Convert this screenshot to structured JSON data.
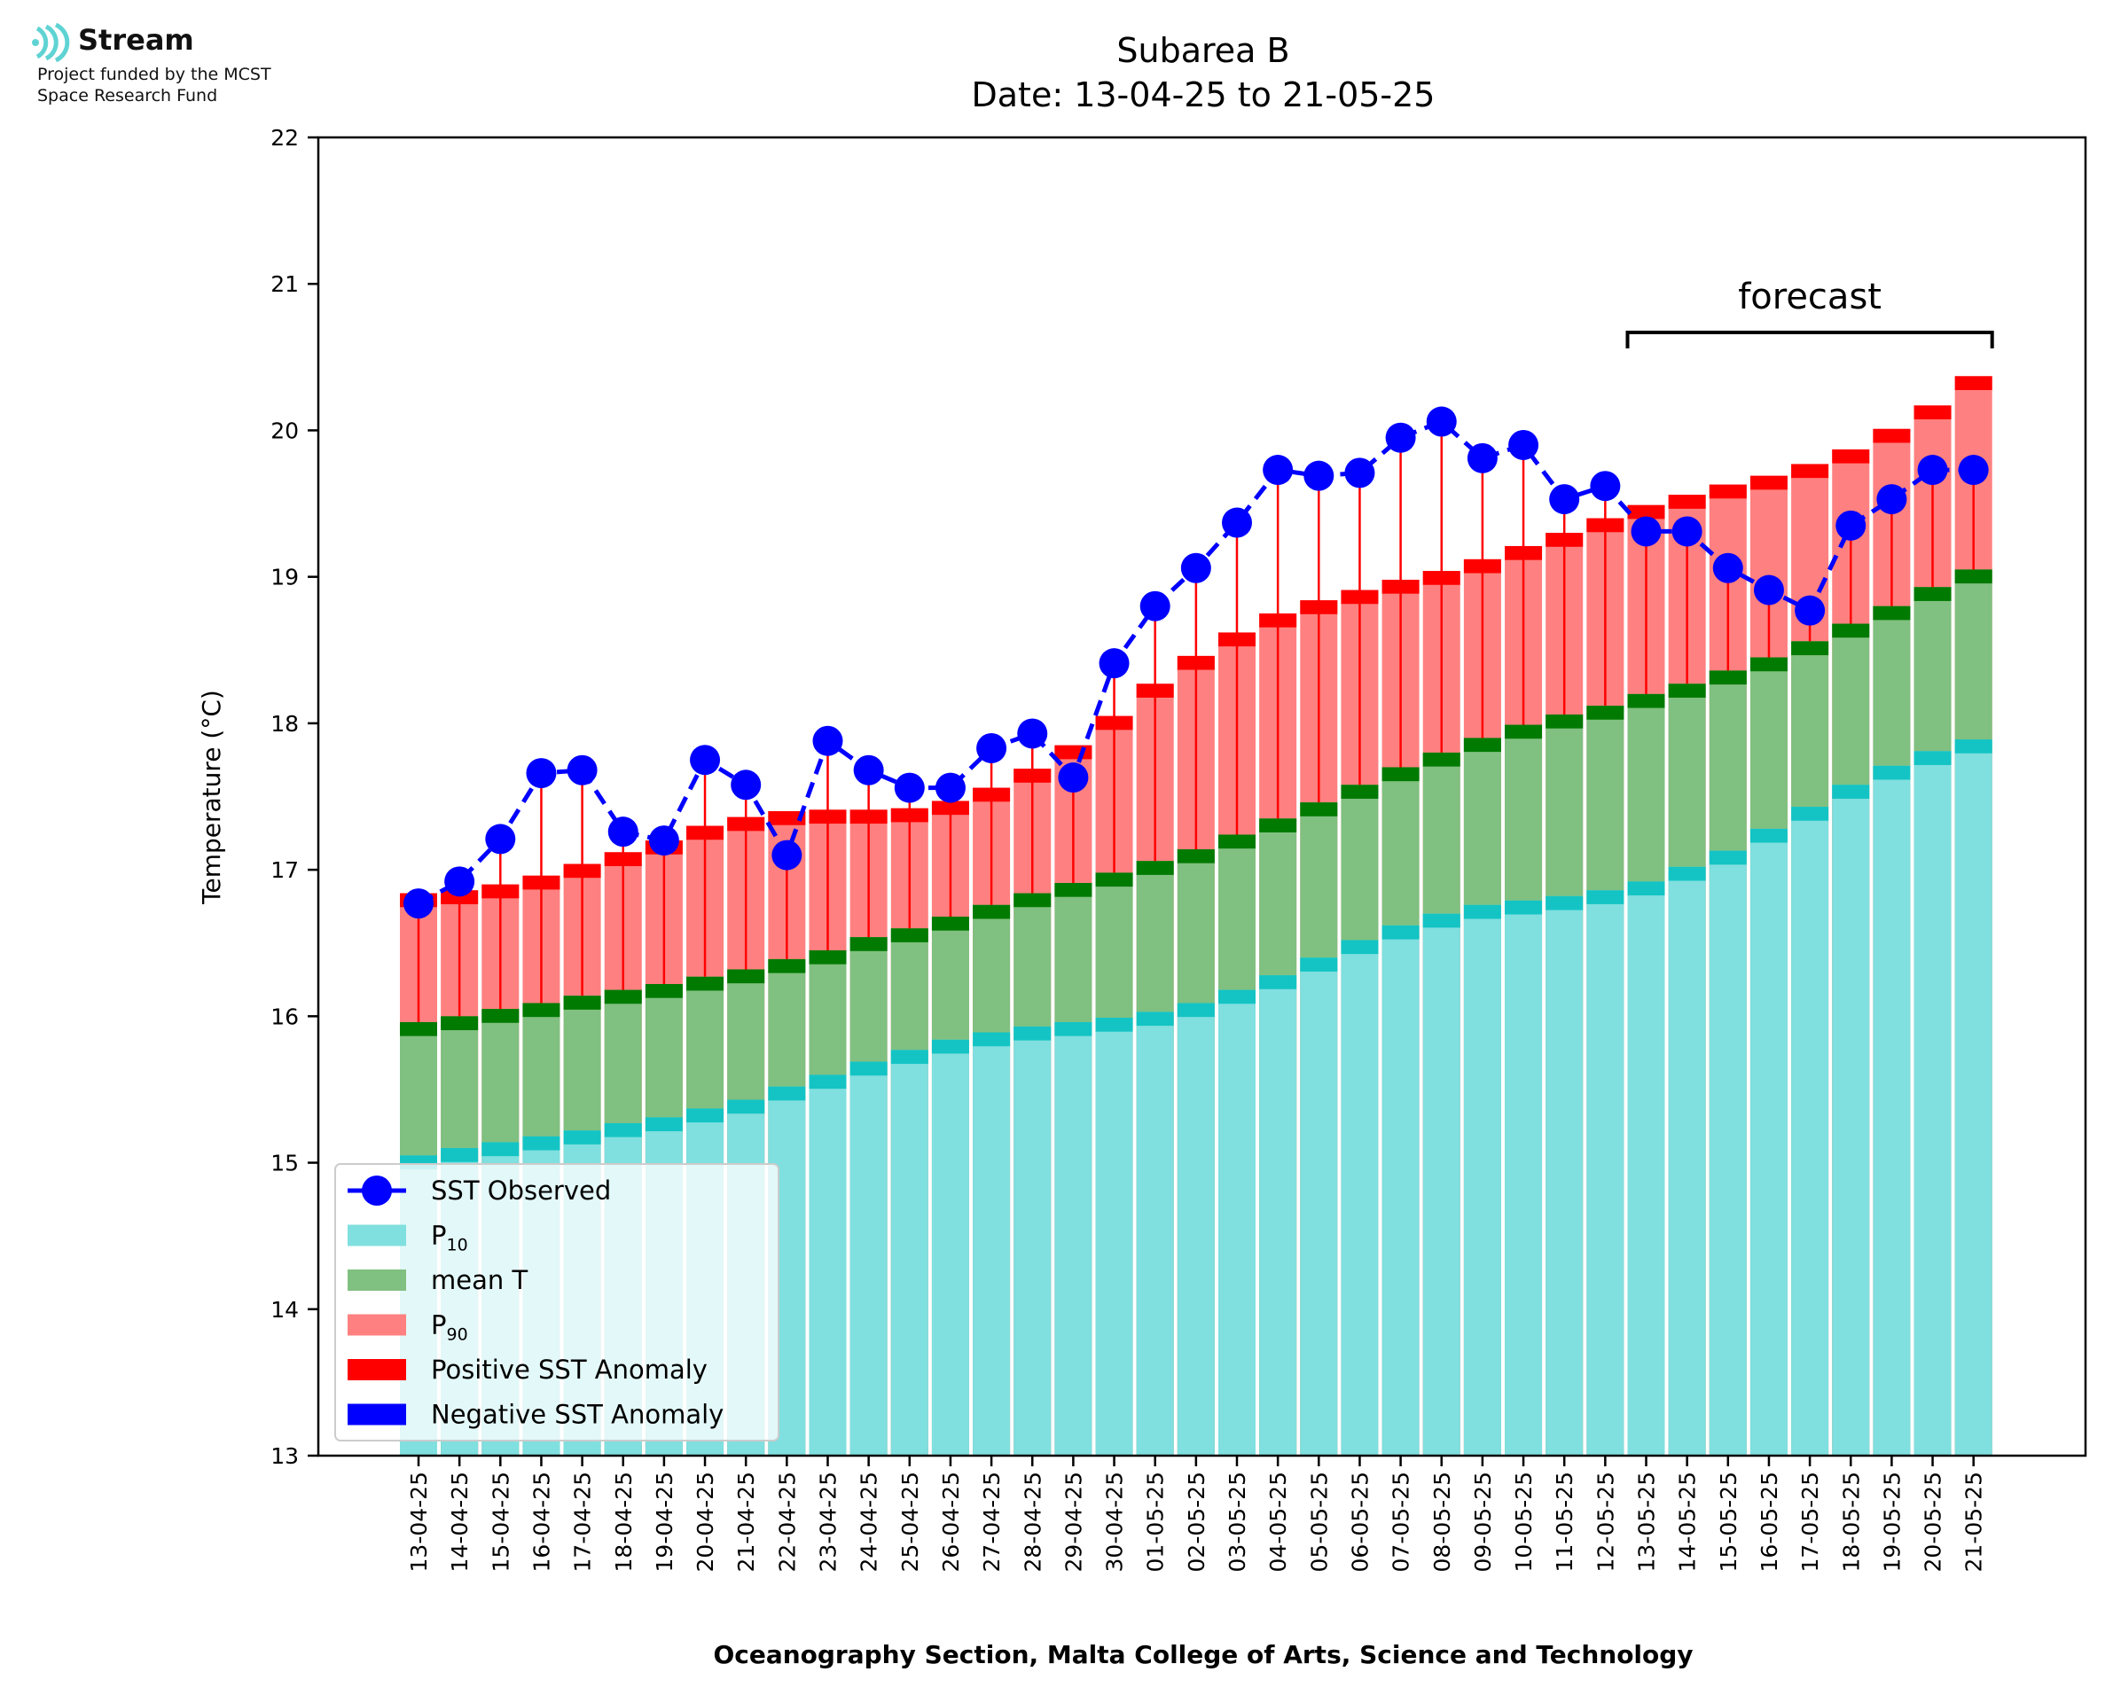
{
  "logo": {
    "name": "Stream",
    "line1": "Project funded by the MCST",
    "line2": "Space Research Fund",
    "color": "#5fd3d3"
  },
  "chart_data": {
    "type": "bar",
    "title": "Subarea B",
    "subtitle": "Date: 13-04-25 to 21-05-25",
    "xlabel": "Oceanography Section, Malta College of Arts, Science and Technology",
    "ylabel": "Temperature (°C)",
    "ylim": [
      13,
      22
    ],
    "yticks": [
      13,
      14,
      15,
      16,
      17,
      18,
      19,
      20,
      21,
      22
    ],
    "categories": [
      "13-04-25",
      "14-04-25",
      "15-04-25",
      "16-04-25",
      "17-04-25",
      "18-04-25",
      "19-04-25",
      "20-04-25",
      "21-04-25",
      "22-04-25",
      "23-04-25",
      "24-04-25",
      "25-04-25",
      "26-04-25",
      "27-04-25",
      "28-04-25",
      "29-04-25",
      "30-04-25",
      "01-05-25",
      "02-05-25",
      "03-05-25",
      "04-05-25",
      "05-05-25",
      "06-05-25",
      "07-05-25",
      "08-05-25",
      "09-05-25",
      "10-05-25",
      "11-05-25",
      "12-05-25",
      "13-05-25",
      "14-05-25",
      "15-05-25",
      "16-05-25",
      "17-05-25",
      "18-05-25",
      "19-05-25",
      "20-05-25",
      "21-05-25"
    ],
    "series": [
      {
        "name": "P10",
        "color": "#80dfdf",
        "edge_color": "#14c4c4",
        "values": [
          15.05,
          15.1,
          15.14,
          15.18,
          15.22,
          15.27,
          15.31,
          15.37,
          15.43,
          15.52,
          15.6,
          15.69,
          15.77,
          15.84,
          15.89,
          15.93,
          15.96,
          15.99,
          16.03,
          16.09,
          16.18,
          16.28,
          16.4,
          16.52,
          16.62,
          16.7,
          16.76,
          16.79,
          16.82,
          16.86,
          16.92,
          17.02,
          17.13,
          17.28,
          17.43,
          17.58,
          17.71,
          17.81,
          17.89
        ]
      },
      {
        "name": "mean T",
        "color": "#80c080",
        "edge_color": "#007a00",
        "values": [
          15.96,
          16.0,
          16.05,
          16.09,
          16.14,
          16.18,
          16.22,
          16.27,
          16.32,
          16.39,
          16.45,
          16.54,
          16.6,
          16.68,
          16.76,
          16.84,
          16.91,
          16.98,
          17.06,
          17.14,
          17.24,
          17.35,
          17.46,
          17.58,
          17.7,
          17.8,
          17.9,
          17.99,
          18.06,
          18.12,
          18.2,
          18.27,
          18.36,
          18.45,
          18.56,
          18.68,
          18.8,
          18.93,
          19.05
        ]
      },
      {
        "name": "P90",
        "color": "#ff8080",
        "edge_color": "#ff0000",
        "values": [
          16.84,
          16.86,
          16.9,
          16.96,
          17.04,
          17.12,
          17.2,
          17.3,
          17.36,
          17.4,
          17.41,
          17.41,
          17.42,
          17.47,
          17.56,
          17.69,
          17.85,
          18.05,
          18.27,
          18.46,
          18.62,
          18.75,
          18.84,
          18.91,
          18.98,
          19.04,
          19.12,
          19.21,
          19.3,
          19.4,
          19.49,
          19.56,
          19.63,
          19.69,
          19.77,
          19.87,
          20.01,
          20.17,
          20.37
        ]
      },
      {
        "name": "SST Observed",
        "color": "#0000ff",
        "values": [
          16.77,
          16.92,
          17.21,
          17.66,
          17.68,
          17.26,
          17.2,
          17.75,
          17.58,
          17.1,
          17.88,
          17.68,
          17.56,
          17.56,
          17.83,
          17.93,
          17.63,
          18.41,
          18.8,
          19.06,
          19.37,
          19.73,
          19.69,
          19.71,
          19.95,
          20.06,
          19.81,
          19.9,
          19.53,
          19.62,
          19.31,
          19.31,
          19.06,
          18.91,
          18.77,
          19.35,
          19.53,
          19.73,
          19.73
        ]
      }
    ],
    "legend": {
      "position": "lower-left",
      "entries": [
        {
          "label": "SST Observed",
          "color": "#0000ff",
          "marker": "line-circle"
        },
        {
          "label": "P",
          "sub": "10",
          "color": "#80dfdf",
          "marker": "patch"
        },
        {
          "label": "mean T",
          "color": "#80c080",
          "marker": "patch"
        },
        {
          "label": "P",
          "sub": "90",
          "color": "#ff8080",
          "marker": "patch"
        },
        {
          "label": "Positive SST Anomaly",
          "color": "#ff0000",
          "marker": "patch"
        },
        {
          "label": "Negative SST Anomaly",
          "color": "#0000ff",
          "marker": "patch"
        }
      ]
    },
    "annotation": {
      "label": "forecast",
      "from_category": "13-05-25",
      "to_category": "21-05-25"
    },
    "grid": false
  }
}
